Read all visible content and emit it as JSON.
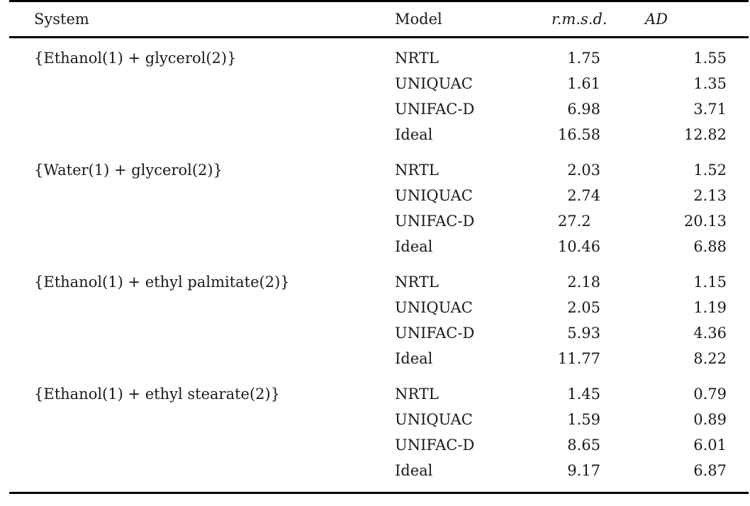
{
  "table": {
    "headers": {
      "system": "System",
      "model": "Model",
      "rmsd": "r.m.s.d.",
      "ad": "AD"
    },
    "decimal_places": 2,
    "groups": [
      {
        "system": "{Ethanol(1) + glycerol(2)}",
        "rows": [
          {
            "model": "NRTL",
            "rmsd": "1.75",
            "ad": "1.55"
          },
          {
            "model": "UNIQUAC",
            "rmsd": "1.61",
            "ad": "1.35"
          },
          {
            "model": "UNIFAC-D",
            "rmsd": "6.98",
            "ad": "3.71"
          },
          {
            "model": "Ideal",
            "rmsd": "16.58",
            "ad": "12.82"
          }
        ]
      },
      {
        "system": "{Water(1) + glycerol(2)}",
        "rows": [
          {
            "model": "NRTL",
            "rmsd": "2.03",
            "ad": "1.52"
          },
          {
            "model": "UNIQUAC",
            "rmsd": "2.74",
            "ad": "2.13"
          },
          {
            "model": "UNIFAC-D",
            "rmsd": "27.2",
            "ad": "20.13"
          },
          {
            "model": "Ideal",
            "rmsd": "10.46",
            "ad": "6.88"
          }
        ]
      },
      {
        "system": "{Ethanol(1) + ethyl palmitate(2)}",
        "rows": [
          {
            "model": "NRTL",
            "rmsd": "2.18",
            "ad": "1.15"
          },
          {
            "model": "UNIQUAC",
            "rmsd": "2.05",
            "ad": "1.19"
          },
          {
            "model": "UNIFAC-D",
            "rmsd": "5.93",
            "ad": "4.36"
          },
          {
            "model": "Ideal",
            "rmsd": "11.77",
            "ad": "8.22"
          }
        ]
      },
      {
        "system": "{Ethanol(1) + ethyl stearate(2)}",
        "rows": [
          {
            "model": "NRTL",
            "rmsd": "1.45",
            "ad": "0.79"
          },
          {
            "model": "UNIQUAC",
            "rmsd": "1.59",
            "ad": "0.89"
          },
          {
            "model": "UNIFAC-D",
            "rmsd": "8.65",
            "ad": "6.01"
          },
          {
            "model": "Ideal",
            "rmsd": "9.17",
            "ad": "6.87"
          }
        ]
      }
    ]
  },
  "colors": {
    "text": "#1a1a1a",
    "rule": "#000000",
    "background": "#ffffff"
  }
}
